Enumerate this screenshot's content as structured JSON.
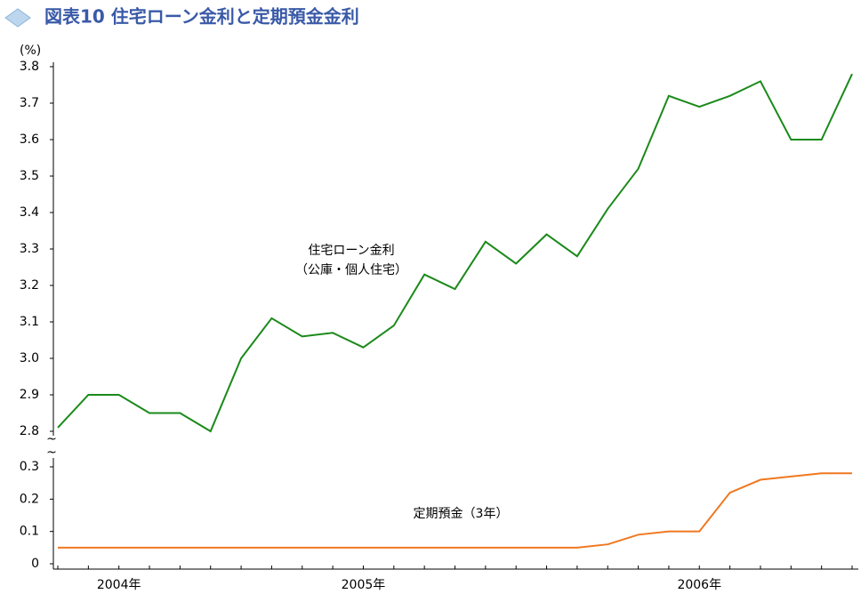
{
  "chart_data": [
    {
      "type": "line",
      "title": "図表10 住宅ローン金利と定期預金金利",
      "y_unit": "(%)",
      "annotation": [
        "住宅ローン金利",
        "（公庫・個人住宅）"
      ],
      "ylim": [
        2.8,
        3.8
      ],
      "yticks": [
        2.8,
        2.9,
        {
          "value": 3,
          "label": "3.0"
        },
        3.1,
        3.2,
        3.3,
        3.4,
        3.5,
        3.6,
        3.7,
        3.8
      ],
      "series": [
        {
          "color": "#1a8a1a",
          "values": [
            2.81,
            2.9,
            2.9,
            2.85,
            2.85,
            2.8,
            3.0,
            3.11,
            3.06,
            3.07,
            3.03,
            3.09,
            3.23,
            3.19,
            3.32,
            3.26,
            3.34,
            3.28,
            3.41,
            3.52,
            3.72,
            3.69,
            3.72,
            3.76,
            3.6,
            3.6,
            3.78
          ]
        }
      ]
    },
    {
      "type": "line",
      "annotation": "定期預金（3年）",
      "categories": [
        null,
        null,
        "2004年",
        null,
        null,
        null,
        null,
        null,
        null,
        null,
        "2005年",
        null,
        null,
        null,
        null,
        null,
        null,
        null,
        null,
        null,
        null,
        "2006年",
        null,
        null,
        null,
        null,
        null
      ],
      "ylim": [
        0,
        0.3
      ],
      "yticks": [
        0,
        0.1,
        0.2,
        0.3
      ],
      "series": [
        {
          "color": "#f07820",
          "values": [
            0.05,
            0.05,
            0.05,
            0.05,
            0.05,
            0.05,
            0.05,
            0.05,
            0.05,
            0.05,
            0.05,
            0.05,
            0.05,
            0.05,
            0.05,
            0.05,
            0.05,
            0.05,
            0.06,
            0.09,
            0.1,
            0.1,
            0.22,
            0.26,
            0.27,
            0.28,
            0.28
          ]
        }
      ]
    }
  ]
}
